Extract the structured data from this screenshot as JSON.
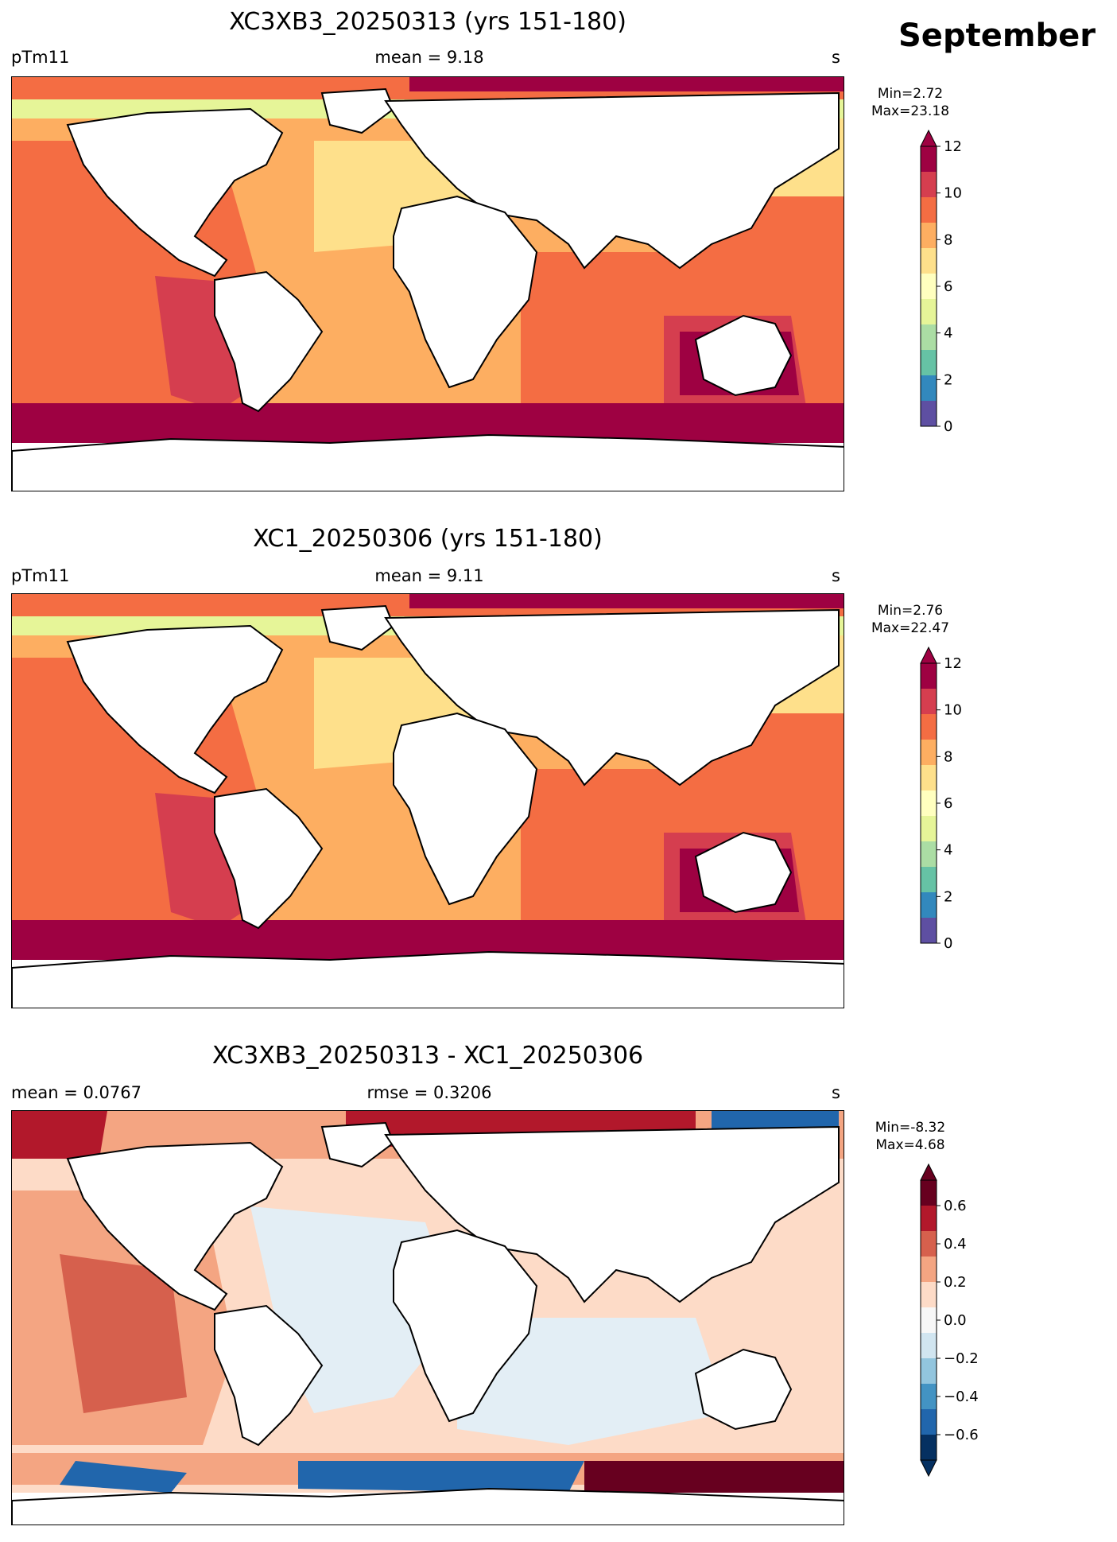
{
  "figure": {
    "month": "September"
  },
  "panels": [
    {
      "title": "XC3XB3_20250313 (yrs 151-180)",
      "left": "pTm11",
      "center": "mean = 9.18",
      "right": "s",
      "min_label": "Min=2.72",
      "max_label": "Max=23.18",
      "colorbar": {
        "ticks": [
          "12",
          "10",
          "8",
          "6",
          "4",
          "2",
          "0"
        ],
        "levels": [
          "#9e0142",
          "#d53e4f",
          "#f46d43",
          "#fdae61",
          "#fee08b",
          "#ffffbf",
          "#e6f598",
          "#abdda4",
          "#66c2a5",
          "#3288bd",
          "#5e4fa2"
        ]
      }
    },
    {
      "title": "XC1_20250306 (yrs 151-180)",
      "left": "pTm11",
      "center": "mean = 9.11",
      "right": "s",
      "min_label": "Min=2.76",
      "max_label": "Max=22.47",
      "colorbar": {
        "ticks": [
          "12",
          "10",
          "8",
          "6",
          "4",
          "2",
          "0"
        ],
        "levels": [
          "#9e0142",
          "#d53e4f",
          "#f46d43",
          "#fdae61",
          "#fee08b",
          "#ffffbf",
          "#e6f598",
          "#abdda4",
          "#66c2a5",
          "#3288bd",
          "#5e4fa2"
        ]
      }
    },
    {
      "title": "XC3XB3_20250313 - XC1_20250306",
      "left": "mean = 0.0767",
      "center": "rmse = 0.3206",
      "right": "s",
      "min_label": "Min=-8.32",
      "max_label": "Max=4.68",
      "colorbar": {
        "ticks": [
          "0.6",
          "0.4",
          "0.2",
          "0.0",
          "−0.2",
          "−0.4",
          "−0.6"
        ],
        "levels": [
          "#67001f",
          "#b2182b",
          "#d6604d",
          "#f4a582",
          "#fddbc7",
          "#f7f7f7",
          "#d1e5f0",
          "#92c5de",
          "#4393c3",
          "#2166ac",
          "#053061"
        ]
      }
    }
  ]
}
